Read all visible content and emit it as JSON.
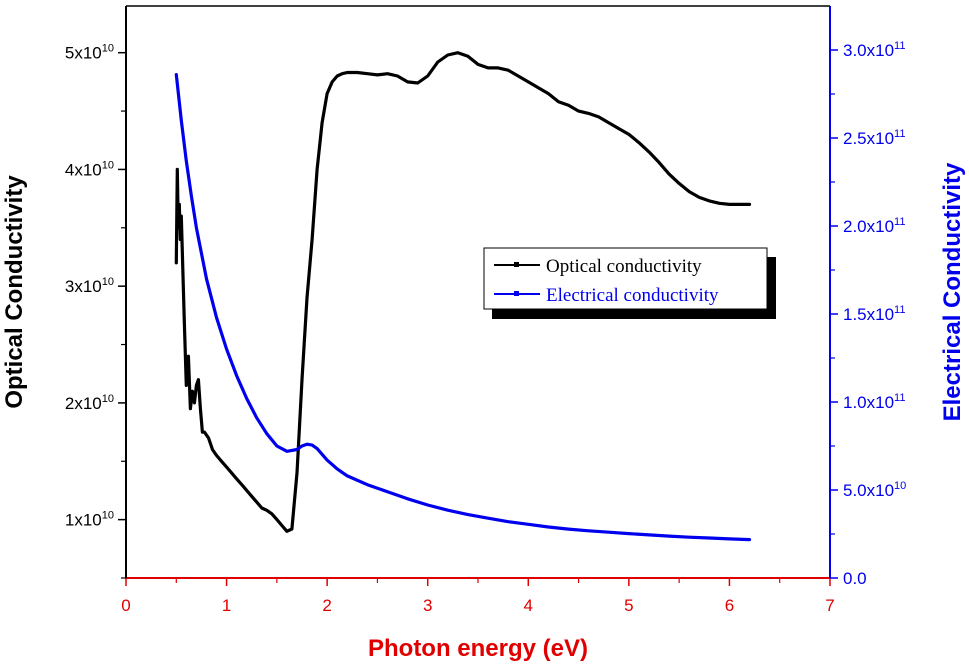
{
  "chart_data": {
    "type": "line",
    "xlabel": "Photon energy (eV)",
    "ylabel_left": "Optical Conductivity",
    "ylabel_right": "Electrical Conductivity",
    "xlim": [
      0,
      7
    ],
    "ylim_left": [
      5000000000,
      54000000000
    ],
    "ylim_right": [
      0,
      325000000000
    ],
    "x_ticks": [
      {
        "value": 0,
        "label": "0"
      },
      {
        "value": 1,
        "label": "1"
      },
      {
        "value": 2,
        "label": "2"
      },
      {
        "value": 3,
        "label": "3"
      },
      {
        "value": 4,
        "label": "4"
      },
      {
        "value": 5,
        "label": "5"
      },
      {
        "value": 6,
        "label": "6"
      },
      {
        "value": 7,
        "label": "7"
      }
    ],
    "y_left_ticks": [
      {
        "value": 10000000000,
        "mantissa": "1x10",
        "exponent": "10"
      },
      {
        "value": 20000000000,
        "mantissa": "2x10",
        "exponent": "10"
      },
      {
        "value": 30000000000,
        "mantissa": "3x10",
        "exponent": "10"
      },
      {
        "value": 40000000000,
        "mantissa": "4x10",
        "exponent": "10"
      },
      {
        "value": 50000000000,
        "mantissa": "5x10",
        "exponent": "10"
      }
    ],
    "y_right_ticks": [
      {
        "value": 0,
        "mantissa": "0.0",
        "exponent": ""
      },
      {
        "value": 50000000000,
        "mantissa": "5.0x10",
        "exponent": "10"
      },
      {
        "value": 100000000000,
        "mantissa": "1.0x10",
        "exponent": "11"
      },
      {
        "value": 150000000000,
        "mantissa": "1.5x10",
        "exponent": "11"
      },
      {
        "value": 200000000000,
        "mantissa": "2.0x10",
        "exponent": "11"
      },
      {
        "value": 250000000000,
        "mantissa": "2.5x10",
        "exponent": "11"
      },
      {
        "value": 300000000000,
        "mantissa": "3.0x10",
        "exponent": "11"
      }
    ],
    "legend_position": "center-right",
    "series": [
      {
        "name": "Optical conductivity",
        "axis": "left",
        "color": "#000000",
        "x": [
          0.5,
          0.51,
          0.52,
          0.53,
          0.54,
          0.55,
          0.56,
          0.57,
          0.58,
          0.6,
          0.62,
          0.64,
          0.66,
          0.68,
          0.7,
          0.72,
          0.74,
          0.76,
          0.78,
          0.82,
          0.86,
          0.9,
          0.95,
          1.0,
          1.05,
          1.1,
          1.15,
          1.2,
          1.25,
          1.3,
          1.35,
          1.4,
          1.45,
          1.5,
          1.55,
          1.6,
          1.65,
          1.7,
          1.75,
          1.8,
          1.85,
          1.9,
          1.95,
          2.0,
          2.05,
          2.1,
          2.15,
          2.2,
          2.3,
          2.4,
          2.5,
          2.6,
          2.7,
          2.8,
          2.9,
          3.0,
          3.1,
          3.2,
          3.3,
          3.4,
          3.5,
          3.6,
          3.7,
          3.8,
          3.9,
          4.0,
          4.1,
          4.2,
          4.3,
          4.4,
          4.5,
          4.6,
          4.7,
          4.8,
          4.9,
          5.0,
          5.1,
          5.2,
          5.3,
          5.4,
          5.5,
          5.6,
          5.7,
          5.8,
          5.9,
          6.0,
          6.1,
          6.2
        ],
        "y": [
          32000000000,
          40000000000,
          35000000000,
          37000000000,
          34000000000,
          36000000000,
          33000000000,
          30000000000,
          27000000000,
          21500000000,
          24000000000,
          19500000000,
          21000000000,
          20000000000,
          21500000000,
          22000000000,
          19500000000,
          17500000000,
          17500000000,
          17000000000,
          16000000000,
          15500000000,
          15000000000,
          14500000000,
          14000000000,
          13500000000,
          13000000000,
          12500000000,
          12000000000,
          11500000000,
          11000000000,
          10800000000,
          10500000000,
          10000000000,
          9500000000,
          9000000000,
          9200000000,
          14000000000,
          22000000000,
          29000000000,
          34000000000,
          40000000000,
          44000000000,
          46500000000,
          47500000000,
          48000000000,
          48200000000,
          48300000000,
          48300000000,
          48200000000,
          48100000000,
          48200000000,
          48000000000,
          47500000000,
          47400000000,
          48000000000,
          49200000000,
          49800000000,
          50000000000,
          49700000000,
          49000000000,
          48700000000,
          48700000000,
          48500000000,
          48000000000,
          47500000000,
          47000000000,
          46500000000,
          45800000000,
          45500000000,
          45000000000,
          44800000000,
          44500000000,
          44000000000,
          43500000000,
          43000000000,
          42300000000,
          41500000000,
          40600000000,
          39600000000,
          38800000000,
          38100000000,
          37600000000,
          37300000000,
          37100000000,
          37000000000,
          37000000000,
          37000000000
        ]
      },
      {
        "name": "Electrical conductivity",
        "axis": "right",
        "color": "#0000ee",
        "x": [
          0.5,
          0.55,
          0.6,
          0.65,
          0.7,
          0.8,
          0.9,
          1.0,
          1.1,
          1.2,
          1.3,
          1.4,
          1.5,
          1.6,
          1.65,
          1.7,
          1.75,
          1.8,
          1.85,
          1.9,
          2.0,
          2.1,
          2.2,
          2.4,
          2.6,
          2.8,
          3.0,
          3.2,
          3.4,
          3.6,
          3.8,
          4.0,
          4.2,
          4.4,
          4.6,
          4.8,
          5.0,
          5.2,
          5.4,
          5.6,
          5.8,
          6.0,
          6.2
        ],
        "y": [
          286000000000,
          260000000000,
          237000000000,
          217000000000,
          199000000000,
          170000000000,
          148000000000,
          130000000000,
          115000000000,
          102000000000,
          91000000000,
          82000000000,
          75000000000,
          72000000000,
          72500000000,
          73000000000,
          75000000000,
          76000000000,
          75500000000,
          73500000000,
          67000000000,
          62000000000,
          58000000000,
          53000000000,
          49000000000,
          45000000000,
          41500000000,
          38500000000,
          36000000000,
          34000000000,
          32000000000,
          30500000000,
          29000000000,
          27800000000,
          26800000000,
          26000000000,
          25200000000,
          24500000000,
          23800000000,
          23200000000,
          22700000000,
          22200000000,
          21800000000
        ]
      }
    ]
  }
}
